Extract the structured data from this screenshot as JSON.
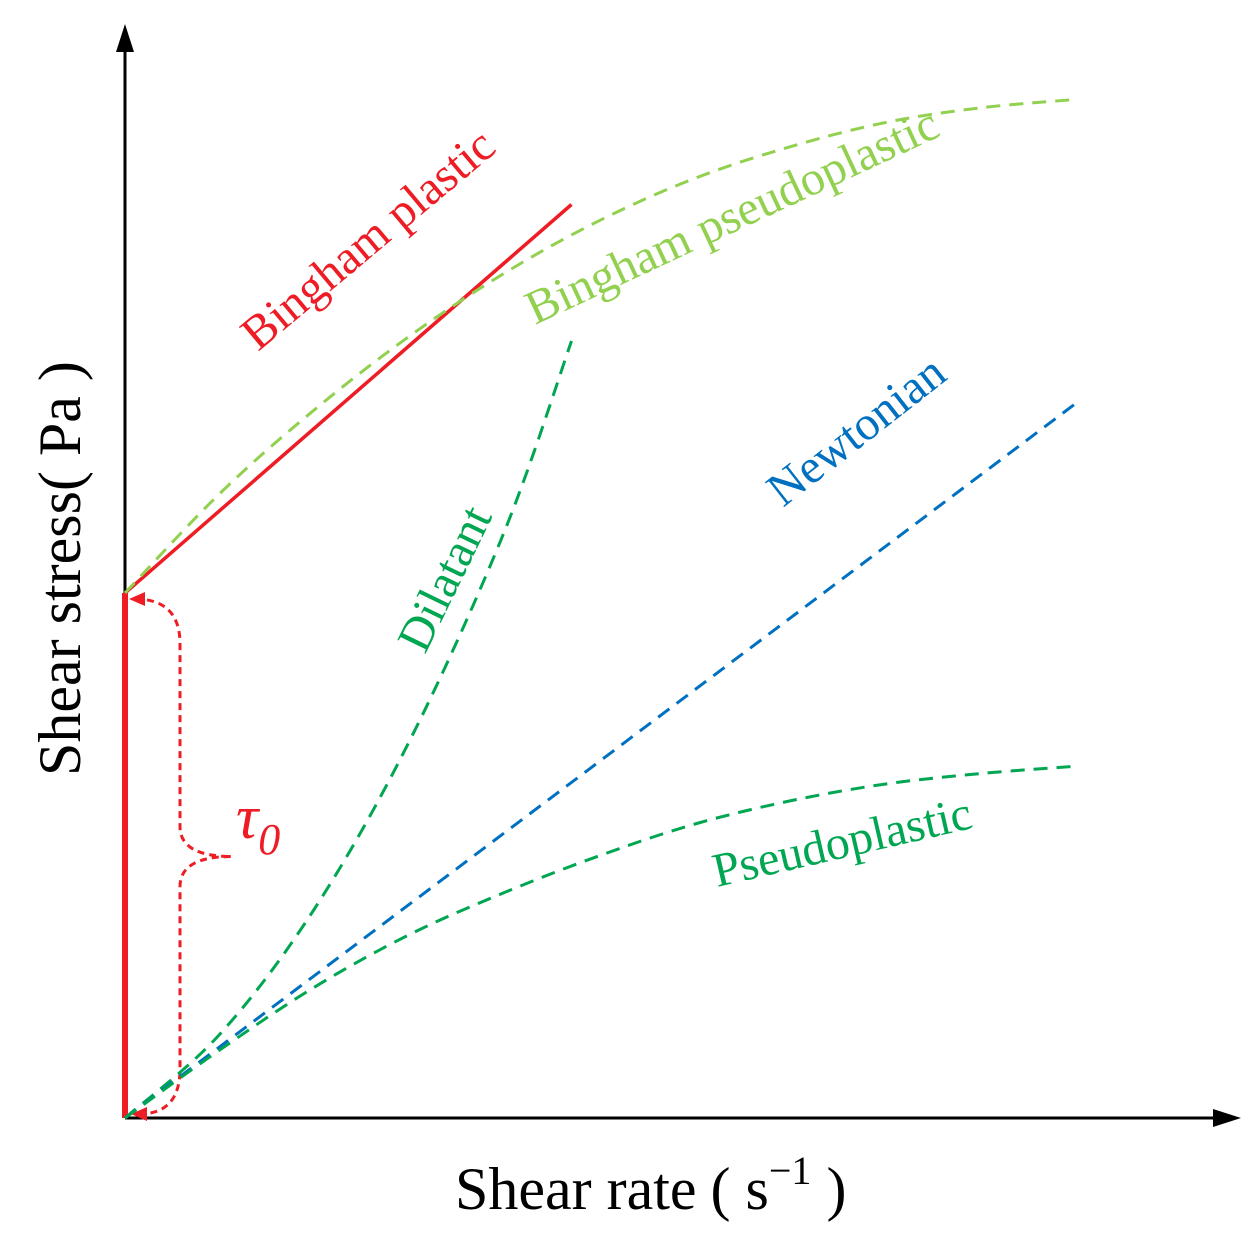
{
  "chart_data": {
    "type": "line",
    "title": "",
    "xlabel": "Shear rate",
    "xlabel_unit_open": "( s",
    "xlabel_unit_exp": "−1",
    "xlabel_unit_close": " )",
    "ylabel": "Shear stress( Pa )",
    "xlim": [
      0,
      100
    ],
    "ylim": [
      0,
      100
    ],
    "grid": false,
    "yield_stress": {
      "symbol": "τ",
      "subscript": "0",
      "value": 50,
      "color": "#ee1c24"
    },
    "series": [
      {
        "name": "Bingham plastic",
        "style": "solid",
        "color": "#ee1c24",
        "x": [
          0,
          47
        ],
        "y": [
          50,
          87
        ]
      },
      {
        "name": "Bingham pseudoplastic",
        "style": "dashed",
        "color": "#92d050",
        "x": [
          0,
          10,
          20,
          30,
          40,
          50,
          60,
          70,
          80,
          90,
          100
        ],
        "y": [
          50,
          59.5,
          67.5,
          74.5,
          80.5,
          85.5,
          89.5,
          92.5,
          94.8,
          96.2,
          97
        ]
      },
      {
        "name": "Dilatant",
        "style": "dashed",
        "color": "#00a651",
        "x": [
          0,
          10,
          20,
          30,
          40,
          47
        ],
        "y": [
          0,
          8,
          20,
          36,
          56,
          74
        ]
      },
      {
        "name": "Newtonian",
        "style": "dashed",
        "color": "#0070c0",
        "x": [
          0,
          100
        ],
        "y": [
          0,
          68
        ]
      },
      {
        "name": "Pseudoplastic",
        "style": "dashed",
        "color": "#00a651",
        "x": [
          0,
          10,
          20,
          30,
          40,
          50,
          60,
          70,
          80,
          90,
          100
        ],
        "y": [
          0,
          6.5,
          12.5,
          17.5,
          21.5,
          25,
          28,
          30.2,
          31.8,
          32.8,
          33.5
        ]
      }
    ]
  }
}
